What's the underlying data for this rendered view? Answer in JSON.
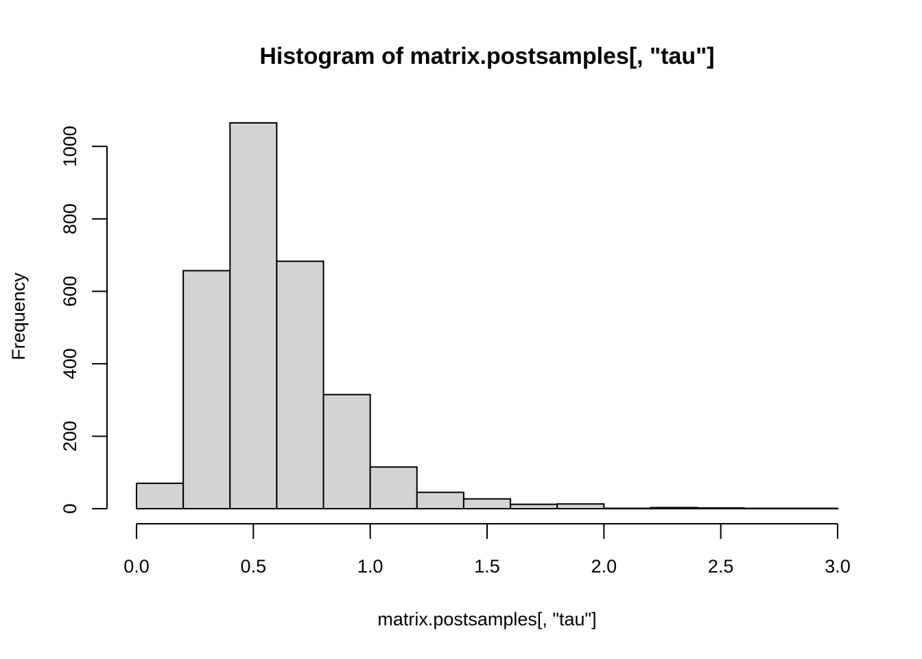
{
  "chart_data": {
    "type": "bar",
    "title": "Histogram of matrix.postsamples[, \"tau\"]",
    "xlabel": "matrix.postsamples[, \"tau\"]",
    "ylabel": "Frequency",
    "bin_edges": [
      0.0,
      0.2,
      0.4,
      0.6,
      0.8,
      1.0,
      1.2,
      1.4,
      1.6,
      1.8,
      2.0,
      2.2,
      2.4,
      2.6,
      2.8,
      3.0
    ],
    "values": [
      70,
      657,
      1065,
      683,
      315,
      115,
      45,
      27,
      12,
      13,
      1,
      3,
      2,
      1,
      1
    ],
    "xlim": [
      0,
      3
    ],
    "ylim": [
      0,
      1065
    ],
    "x_ticks": [
      0.0,
      0.5,
      1.0,
      1.5,
      2.0,
      2.5,
      3.0
    ],
    "x_tick_labels": [
      "0.0",
      "0.5",
      "1.0",
      "1.5",
      "2.0",
      "2.5",
      "3.0"
    ],
    "y_ticks": [
      0,
      200,
      400,
      600,
      800,
      1000
    ],
    "y_tick_labels": [
      "0",
      "200",
      "400",
      "600",
      "800",
      "1000"
    ],
    "bar_color": "#d3d3d3",
    "grid": false,
    "legend": "none"
  }
}
